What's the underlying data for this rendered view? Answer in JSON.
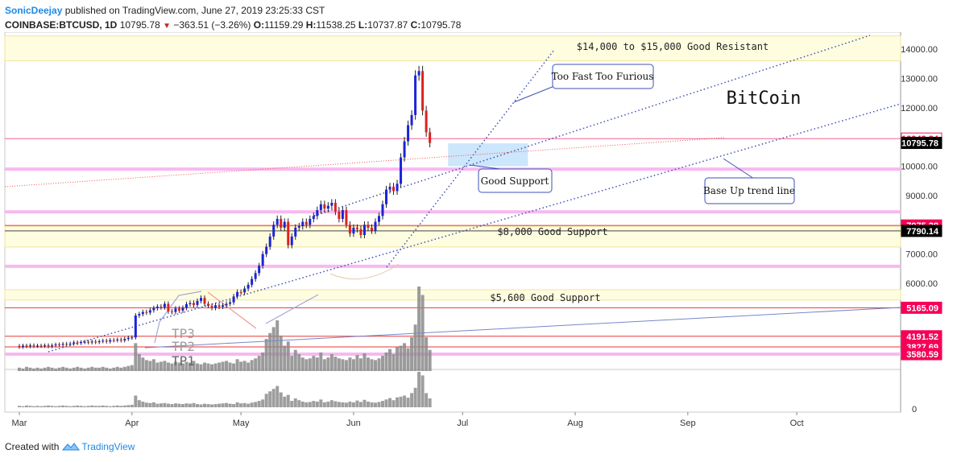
{
  "header": {
    "author": "SonicDeejay",
    "published_text": "published on TradingView.com, June 27, 2019 23:25:33 CST",
    "symbol": "COINBASE:BTCUSD, 1D",
    "last": "10795.78",
    "change": "−363.51 (−3.26%)",
    "o_label": "O:",
    "o_val": "11159.29",
    "h_label": "H:",
    "h_val": "11538.25",
    "l_label": "L:",
    "l_val": "10737.87",
    "c_label": "C:",
    "c_val": "10795.78"
  },
  "annotations": {
    "resistance": "$14,000 to $15,000 Good Resistant",
    "support8000": "$8,000 Good Support",
    "support5600": "$5,600 Good Support",
    "bitcoin": "BitCoin",
    "too_fast": "Too Fast Too Furious",
    "good_support": "Good Support",
    "base_trend": "Base Up trend line",
    "tp3": "TP3",
    "tp2": "TP2",
    "tp1": "TP1"
  },
  "price_tags": [
    {
      "label": "10942.24",
      "value": 10942.24,
      "color": "#e91e63",
      "fill": false
    },
    {
      "label": "10795.78",
      "value": 10795.78,
      "color": "#000000",
      "fill": true
    },
    {
      "label": "7975.28",
      "value": 7975.28,
      "color": "#f50057",
      "fill": true
    },
    {
      "label": "7790.14",
      "value": 7790.14,
      "color": "#000000",
      "fill": true
    },
    {
      "label": "5165.09",
      "value": 5165.09,
      "color": "#f50057",
      "fill": true
    },
    {
      "label": "4191.52",
      "value": 4191.52,
      "color": "#f50057",
      "fill": true
    },
    {
      "label": "3827.69",
      "value": 3827.69,
      "color": "#f50057",
      "fill": true
    },
    {
      "label": "3580.59",
      "value": 3580.59,
      "color": "#f50057",
      "fill": true
    }
  ],
  "chart_data": {
    "type": "candlestick",
    "y_ticks": [
      "14000.00",
      "13000.00",
      "12000.00",
      "11000.00",
      "10000.00",
      "9000.00",
      "8000.00",
      "7000.00",
      "6000.00"
    ],
    "y_tick_values": [
      14000,
      13000,
      12000,
      11000,
      10000,
      9000,
      8000,
      7000,
      6000
    ],
    "x_labels": [
      "Mar",
      "Apr",
      "May",
      "Jun",
      "Jul",
      "Aug",
      "Sep",
      "Oct"
    ],
    "x_label_days": [
      0,
      31,
      61,
      92,
      122,
      153,
      184,
      214
    ],
    "volume_axis_label": "0",
    "candles": [
      [
        3860,
        3830
      ],
      [
        3830,
        3870
      ],
      [
        3870,
        3850
      ],
      [
        3850,
        3880
      ],
      [
        3880,
        3860
      ],
      [
        3860,
        3870
      ],
      [
        3870,
        3860
      ],
      [
        3860,
        3880
      ],
      [
        3880,
        3850
      ],
      [
        3850,
        3880
      ],
      [
        3880,
        3910
      ],
      [
        3910,
        3900
      ],
      [
        3900,
        3930
      ],
      [
        3930,
        3920
      ],
      [
        3920,
        3940
      ],
      [
        3940,
        3980
      ],
      [
        3980,
        3960
      ],
      [
        3960,
        3990
      ],
      [
        3990,
        4000
      ],
      [
        4000,
        3980
      ],
      [
        3980,
        4010
      ],
      [
        4010,
        3990
      ],
      [
        3990,
        4020
      ],
      [
        4020,
        4040
      ],
      [
        4040,
        4010
      ],
      [
        4010,
        4060
      ],
      [
        4060,
        4050
      ],
      [
        4050,
        4080
      ],
      [
        4080,
        4050
      ],
      [
        4050,
        4100
      ],
      [
        4100,
        4140
      ],
      [
        4140,
        4150
      ],
      [
        4150,
        4900
      ],
      [
        4900,
        4950
      ],
      [
        4950,
        5020
      ],
      [
        5020,
        5000
      ],
      [
        5000,
        5080
      ],
      [
        5080,
        5150
      ],
      [
        5150,
        5200
      ],
      [
        5200,
        5180
      ],
      [
        5180,
        5300
      ],
      [
        5300,
        5040
      ],
      [
        5040,
        5020
      ],
      [
        5020,
        5140
      ],
      [
        5140,
        5070
      ],
      [
        5070,
        5160
      ],
      [
        5160,
        5290
      ],
      [
        5290,
        5330
      ],
      [
        5330,
        5260
      ],
      [
        5260,
        5400
      ],
      [
        5400,
        5500
      ],
      [
        5500,
        5300
      ],
      [
        5300,
        5230
      ],
      [
        5230,
        5160
      ],
      [
        5160,
        5250
      ],
      [
        5250,
        5200
      ],
      [
        5200,
        5250
      ],
      [
        5250,
        5300
      ],
      [
        5300,
        5350
      ],
      [
        5350,
        5550
      ],
      [
        5550,
        5700
      ],
      [
        5700,
        5690
      ],
      [
        5690,
        5820
      ],
      [
        5820,
        5950
      ],
      [
        5950,
        6150
      ],
      [
        6150,
        6350
      ],
      [
        6350,
        6600
      ],
      [
        6600,
        7000
      ],
      [
        7000,
        7250
      ],
      [
        7250,
        7600
      ],
      [
        7600,
        8000
      ],
      [
        8000,
        8200
      ],
      [
        8200,
        7900
      ],
      [
        7900,
        8100
      ],
      [
        8100,
        7300
      ],
      [
        7300,
        7600
      ],
      [
        7600,
        7900
      ],
      [
        7900,
        7950
      ],
      [
        7950,
        8100
      ],
      [
        8100,
        8000
      ],
      [
        8000,
        8200
      ],
      [
        8200,
        8300
      ],
      [
        8300,
        8500
      ],
      [
        8500,
        8700
      ],
      [
        8700,
        8550
      ],
      [
        8550,
        8650
      ],
      [
        8650,
        8750
      ],
      [
        8750,
        8450
      ],
      [
        8450,
        8200
      ],
      [
        8200,
        8500
      ],
      [
        8500,
        8000
      ],
      [
        8000,
        7700
      ],
      [
        7700,
        7900
      ],
      [
        7900,
        7850
      ],
      [
        7850,
        7650
      ],
      [
        7650,
        8000
      ],
      [
        8000,
        7900
      ],
      [
        7900,
        7800
      ],
      [
        7800,
        8100
      ],
      [
        8100,
        8300
      ],
      [
        8300,
        8700
      ],
      [
        8700,
        9200
      ],
      [
        9200,
        9300
      ],
      [
        9300,
        9150
      ],
      [
        9150,
        9400
      ],
      [
        9400,
        10300
      ],
      [
        10300,
        10850
      ],
      [
        10850,
        11400
      ],
      [
        11400,
        11750
      ],
      [
        11750,
        13100
      ],
      [
        13100,
        13250
      ],
      [
        13250,
        11900
      ],
      [
        11900,
        11159
      ],
      [
        11159,
        10795
      ]
    ],
    "volumes": [
      4,
      3,
      5,
      4,
      3,
      4,
      3,
      4,
      5,
      4,
      3,
      4,
      5,
      4,
      3,
      4,
      5,
      4,
      3,
      4,
      5,
      4,
      4,
      5,
      4,
      3,
      4,
      5,
      4,
      5,
      6,
      7,
      33,
      20,
      16,
      13,
      12,
      14,
      10,
      11,
      12,
      10,
      9,
      11,
      10,
      9,
      11,
      10,
      12,
      9,
      8,
      10,
      9,
      8,
      9,
      10,
      11,
      12,
      10,
      9,
      14,
      11,
      12,
      10,
      13,
      15,
      18,
      22,
      38,
      45,
      52,
      60,
      42,
      30,
      35,
      18,
      25,
      20,
      16,
      14,
      15,
      18,
      16,
      22,
      14,
      16,
      20,
      17,
      15,
      14,
      13,
      16,
      14,
      19,
      15,
      21,
      16,
      14,
      13,
      15,
      18,
      22,
      26,
      20,
      28,
      30,
      33,
      27,
      40,
      55,
      100,
      90,
      40,
      25
    ],
    "resistance_zone": [
      13600,
      14450
    ],
    "support_zone_8000": [
      7240,
      7950
    ],
    "support_zone_5600": [
      5430,
      5780
    ],
    "good_support_box": [
      10000,
      10780
    ],
    "magenta_bands": [
      10942.24,
      9900,
      8440,
      6580,
      3580.59
    ],
    "red_lines": [
      7975.28,
      7790.14,
      5165.09,
      4191.52,
      3827.69
    ]
  }
}
